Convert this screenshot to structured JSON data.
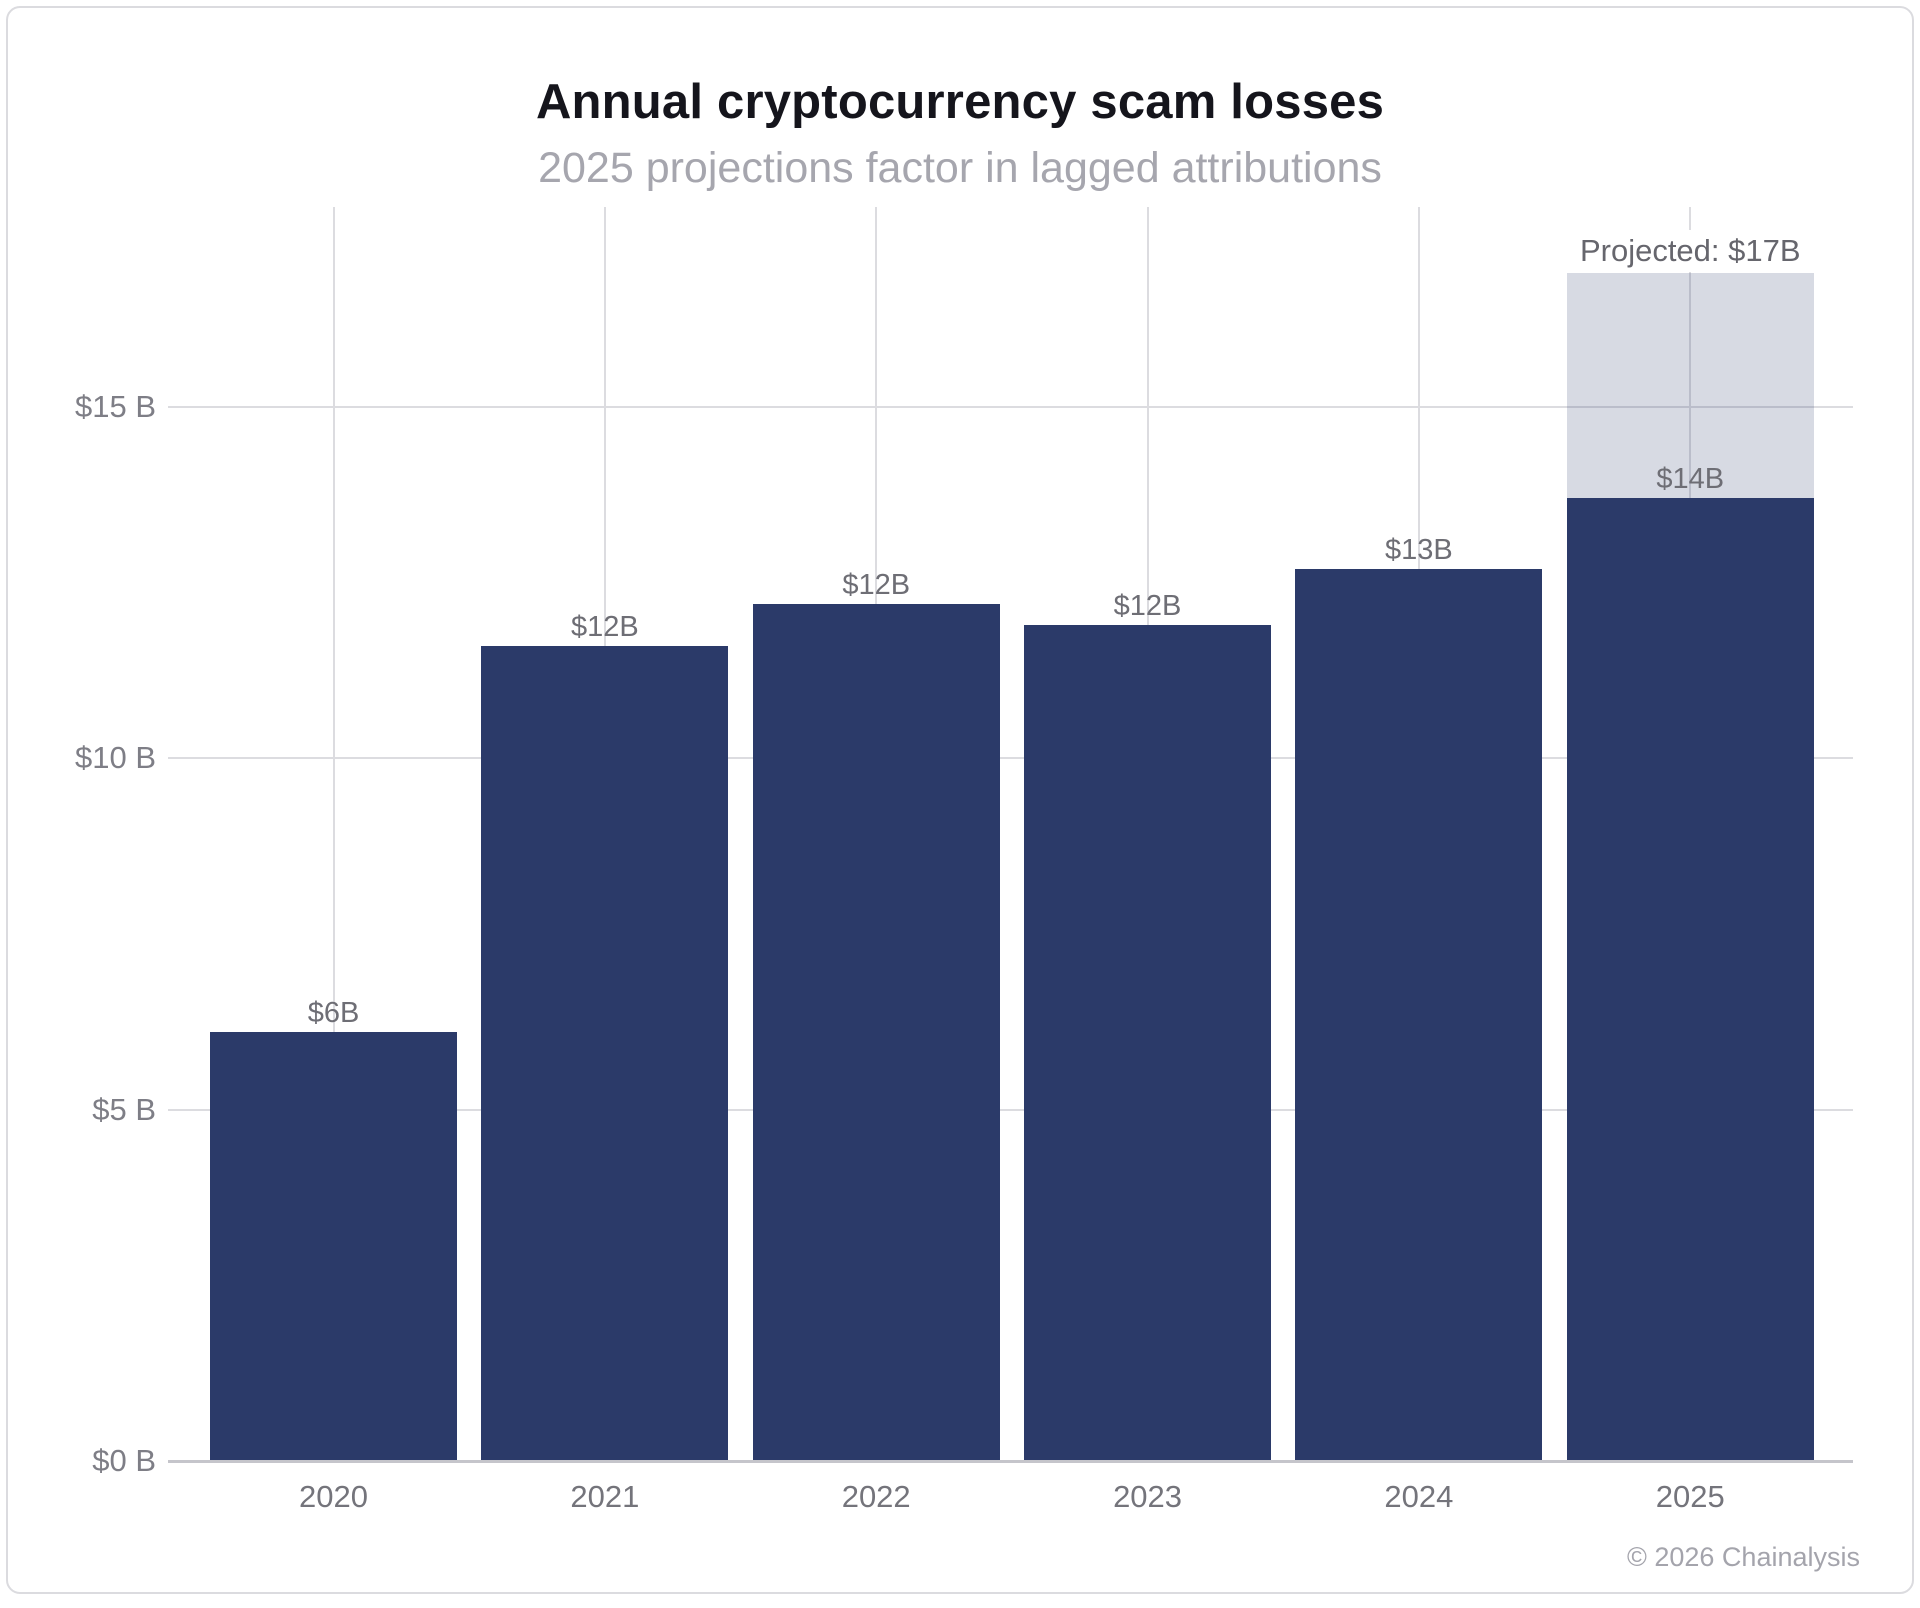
{
  "chart_data": {
    "type": "bar",
    "title": "Annual cryptocurrency scam losses",
    "subtitle": "2025 projections factor in lagged attributions",
    "categories": [
      "2020",
      "2021",
      "2022",
      "2023",
      "2024",
      "2025"
    ],
    "values": [
      6.1,
      11.6,
      12.2,
      11.9,
      12.7,
      13.7
    ],
    "bar_labels": [
      "$6B",
      "$12B",
      "$12B",
      "$12B",
      "$13B",
      "$14B"
    ],
    "projection": {
      "category": "2025",
      "base_value": 13.7,
      "projected_total": 16.9,
      "label": "Projected: $17B"
    },
    "y_axis": {
      "ticks": [
        {
          "value": 0,
          "label": "$0 B"
        },
        {
          "value": 5,
          "label": "$5 B"
        },
        {
          "value": 10,
          "label": "$10 B"
        },
        {
          "value": 15,
          "label": "$15 B"
        }
      ]
    },
    "ylim": [
      0,
      17.8
    ],
    "grid": true,
    "legend": "none",
    "colors": {
      "bar": "#2b3a69",
      "projected_fill": "#d6d8e4",
      "projected_fill_rgba": "rgba(43,57,105,0.19)",
      "gridline": "#dcdce0",
      "axis_line": "#c5c5cb",
      "title": "#15151c",
      "subtitle": "#a6a6ae",
      "bar_label": "#6e6e75",
      "projected_label": "#66666d",
      "x_axis_label": "#74747b",
      "y_axis_label": "#7e7e86",
      "footer": "#a4a4ac"
    }
  },
  "footer": {
    "credit": "© 2026 Chainalysis"
  }
}
